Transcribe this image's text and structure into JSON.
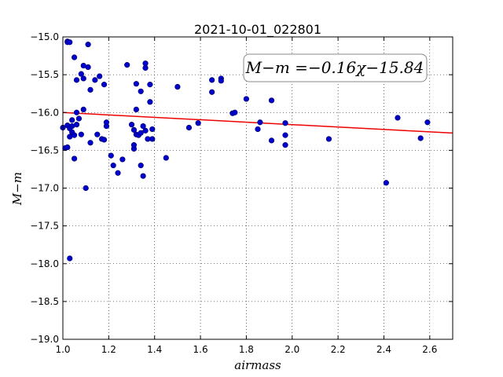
{
  "chart_data": {
    "type": "scatter",
    "title": "2021-10-01_022801",
    "xlabel": "airmass",
    "ylabel": "M−m",
    "xlim": [
      1.0,
      2.7
    ],
    "ylim": [
      -19.0,
      -15.0
    ],
    "y_inverted": false,
    "grid": true,
    "x_ticks": [
      "1.0",
      "1.2",
      "1.4",
      "1.6",
      "1.8",
      "2.0",
      "2.2",
      "2.4",
      "2.6"
    ],
    "y_ticks": [
      "−15.0",
      "−15.5",
      "−16.0",
      "−16.5",
      "−17.0",
      "−17.5",
      "−18.0",
      "−18.5",
      "−19.0"
    ],
    "annotation": "M−m =−0.16χ−15.84",
    "fit_line": {
      "slope": -0.16,
      "intercept": -15.84,
      "color": "#ee0000"
    },
    "point_color": "#0000cc",
    "points": [
      [
        1.0,
        -16.2
      ],
      [
        1.01,
        -16.47
      ],
      [
        1.02,
        -16.46
      ],
      [
        1.02,
        -16.17
      ],
      [
        1.02,
        -15.06
      ],
      [
        1.02,
        -15.07
      ],
      [
        1.03,
        -15.07
      ],
      [
        1.03,
        -16.32
      ],
      [
        1.03,
        -16.21
      ],
      [
        1.03,
        -17.93
      ],
      [
        1.04,
        -16.1
      ],
      [
        1.04,
        -16.26
      ],
      [
        1.04,
        -16.18
      ],
      [
        1.05,
        -16.61
      ],
      [
        1.05,
        -16.3
      ],
      [
        1.05,
        -15.27
      ],
      [
        1.06,
        -16.16
      ],
      [
        1.06,
        -15.57
      ],
      [
        1.06,
        -16.0
      ],
      [
        1.07,
        -16.08
      ],
      [
        1.08,
        -16.29
      ],
      [
        1.08,
        -15.49
      ],
      [
        1.09,
        -15.38
      ],
      [
        1.09,
        -15.55
      ],
      [
        1.09,
        -15.96
      ],
      [
        1.1,
        -17.0
      ],
      [
        1.11,
        -15.1
      ],
      [
        1.11,
        -15.4
      ],
      [
        1.12,
        -16.4
      ],
      [
        1.12,
        -15.7
      ],
      [
        1.14,
        -15.57
      ],
      [
        1.15,
        -16.29
      ],
      [
        1.16,
        -15.52
      ],
      [
        1.17,
        -16.35
      ],
      [
        1.18,
        -15.63
      ],
      [
        1.18,
        -16.36
      ],
      [
        1.19,
        -16.18
      ],
      [
        1.19,
        -16.13
      ],
      [
        1.21,
        -16.57
      ],
      [
        1.22,
        -16.7
      ],
      [
        1.24,
        -16.8
      ],
      [
        1.26,
        -16.62
      ],
      [
        1.28,
        -15.37
      ],
      [
        1.3,
        -16.16
      ],
      [
        1.31,
        -16.23
      ],
      [
        1.31,
        -16.48
      ],
      [
        1.31,
        -16.43
      ],
      [
        1.32,
        -15.96
      ],
      [
        1.32,
        -16.29
      ],
      [
        1.32,
        -15.62
      ],
      [
        1.33,
        -16.3
      ],
      [
        1.34,
        -16.7
      ],
      [
        1.34,
        -15.72
      ],
      [
        1.34,
        -16.27
      ],
      [
        1.35,
        -16.18
      ],
      [
        1.35,
        -16.84
      ],
      [
        1.36,
        -15.35
      ],
      [
        1.36,
        -15.41
      ],
      [
        1.36,
        -16.24
      ],
      [
        1.37,
        -16.35
      ],
      [
        1.38,
        -15.86
      ],
      [
        1.38,
        -15.63
      ],
      [
        1.39,
        -16.35
      ],
      [
        1.39,
        -16.22
      ],
      [
        1.45,
        -16.6
      ],
      [
        1.5,
        -15.66
      ],
      [
        1.55,
        -16.2
      ],
      [
        1.59,
        -16.14
      ],
      [
        1.65,
        -15.57
      ],
      [
        1.65,
        -15.73
      ],
      [
        1.69,
        -15.55
      ],
      [
        1.69,
        -15.58
      ],
      [
        1.74,
        -16.01
      ],
      [
        1.75,
        -16.0
      ],
      [
        1.8,
        -15.82
      ],
      [
        1.85,
        -16.22
      ],
      [
        1.86,
        -16.13
      ],
      [
        1.91,
        -15.84
      ],
      [
        1.91,
        -16.37
      ],
      [
        1.97,
        -16.3
      ],
      [
        1.97,
        -16.14
      ],
      [
        1.97,
        -16.43
      ],
      [
        2.16,
        -16.35
      ],
      [
        2.41,
        -16.93
      ],
      [
        2.46,
        -16.07
      ],
      [
        2.56,
        -16.34
      ],
      [
        2.59,
        -16.13
      ]
    ]
  }
}
